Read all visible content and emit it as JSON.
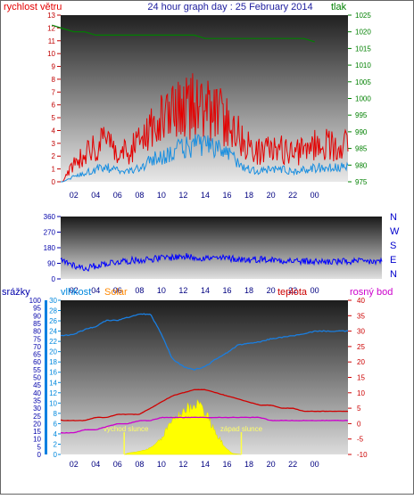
{
  "header": {
    "left_label": "rychlost větru",
    "title": "24 hour graph day : 25 February 2014",
    "right_label": "tlak"
  },
  "colors": {
    "wind": "#e40000",
    "gust_blue": "#1a8fe0",
    "pressure": "#008000",
    "direction": "#0000ff",
    "humidity": "#1a7ee0",
    "temperature": "#d00000",
    "dewpoint": "#cc00cc",
    "solar": "#ffff00",
    "precip_axis": "#0000cc",
    "humidity_axis": "#0088dd",
    "solar_label": "#ff8800",
    "temp_axis": "#cc0000",
    "sun_marker": "#ffff44"
  },
  "chart_data": [
    {
      "type": "line",
      "name": "wind_pressure",
      "x_ticks": [
        "02",
        "04",
        "06",
        "08",
        "10",
        "12",
        "14",
        "16",
        "18",
        "20",
        "22",
        "00"
      ],
      "ylabel_left": "rychlost větru",
      "ylim_left": [
        0,
        13
      ],
      "y_ticks_left": [
        "0",
        "1",
        "2",
        "3",
        "4",
        "5",
        "6",
        "7",
        "8",
        "9",
        "10",
        "11",
        "12",
        "13"
      ],
      "ylabel_right": "tlak",
      "ylim_right": [
        975,
        1025
      ],
      "y_ticks_right": [
        "975",
        "980",
        "985",
        "990",
        "995",
        "1000",
        "1005",
        "1010",
        "1015",
        "1020",
        "1025"
      ],
      "series": [
        {
          "key": "wind_gust",
          "x": [
            0,
            1,
            2,
            3,
            4,
            5,
            6,
            7,
            8,
            9,
            10,
            11,
            12,
            13,
            14,
            15,
            16,
            17,
            18,
            19,
            20,
            21,
            22,
            23,
            24
          ],
          "y": [
            0,
            0,
            1.5,
            2.2,
            2.8,
            3.0,
            2.6,
            2.2,
            3.2,
            4.2,
            4.8,
            5.2,
            5.6,
            6.1,
            5.8,
            5.3,
            4.8,
            3.8,
            2.7,
            2.3,
            2.6,
            2.5,
            2.2,
            2.4,
            2.9
          ]
        },
        {
          "key": "wind_avg",
          "x": [
            0,
            1,
            2,
            3,
            4,
            5,
            6,
            7,
            8,
            9,
            10,
            11,
            12,
            13,
            14,
            15,
            16,
            17,
            18,
            19,
            20,
            21,
            22,
            23,
            24
          ],
          "y": [
            0,
            0,
            0.4,
            0.7,
            1.0,
            1.1,
            0.9,
            0.8,
            1.1,
            1.6,
            2.0,
            2.3,
            2.6,
            2.9,
            2.8,
            2.5,
            2.2,
            1.6,
            1.0,
            0.8,
            1.0,
            1.0,
            0.8,
            0.9,
            1.1
          ]
        },
        {
          "key": "pressure",
          "x": [
            0,
            1,
            2,
            3,
            4,
            5,
            6,
            7,
            8,
            9,
            10,
            11,
            12,
            13,
            14,
            15,
            16,
            17,
            18,
            19,
            20,
            21,
            22,
            23,
            24
          ],
          "y": [
            1022,
            1021,
            1020,
            1020,
            1019,
            1019,
            1019,
            1019,
            1019,
            1019,
            1019,
            1019,
            1019,
            1019,
            1018,
            1018,
            1018,
            1018,
            1018,
            1018,
            1018,
            1018,
            1018,
            1018,
            1017
          ]
        }
      ]
    },
    {
      "type": "line",
      "name": "wind_direction",
      "x_ticks": [
        "02",
        "04",
        "06",
        "08",
        "10",
        "12",
        "14",
        "16",
        "18",
        "20",
        "22",
        "00"
      ],
      "ylim": [
        0,
        360
      ],
      "y_ticks": [
        "0",
        "90",
        "180",
        "270",
        "360"
      ],
      "compass_labels": [
        "N",
        "W",
        "S",
        "E",
        "N"
      ],
      "series": [
        {
          "key": "direction",
          "x": [
            0,
            1,
            2,
            3,
            4,
            5,
            6,
            7,
            8,
            9,
            10,
            11,
            12,
            13,
            14,
            15,
            16,
            17,
            18,
            19,
            20,
            21,
            22,
            23,
            24
          ],
          "y": [
            110,
            105,
            80,
            60,
            75,
            90,
            100,
            105,
            110,
            115,
            120,
            125,
            130,
            125,
            120,
            118,
            120,
            115,
            110,
            115,
            110,
            108,
            105,
            100,
            100
          ]
        }
      ]
    },
    {
      "type": "area",
      "name": "humidity_temp_solar",
      "x_ticks": [
        "02",
        "04",
        "06",
        "08",
        "10",
        "12",
        "14",
        "16",
        "18",
        "20",
        "22",
        "00"
      ],
      "axes": {
        "precip": {
          "label": "srážky",
          "ylim": [
            0,
            100
          ],
          "ticks": [
            "0",
            "5",
            "10",
            "15",
            "20",
            "25",
            "30",
            "35",
            "40",
            "45",
            "50",
            "55",
            "60",
            "65",
            "70",
            "75",
            "80",
            "85",
            "90",
            "95",
            "100"
          ]
        },
        "humidity": {
          "label": "vlhkost",
          "ylim": [
            0,
            30
          ],
          "ticks": [
            "0",
            "2",
            "4",
            "6",
            "8",
            "10",
            "12",
            "14",
            "16",
            "18",
            "20",
            "22",
            "24",
            "26",
            "28",
            "30"
          ]
        },
        "solar": {
          "label": "Solar"
        },
        "temperature": {
          "label": "teplota",
          "ylim": [
            -10,
            40
          ],
          "ticks": [
            "-10",
            "-5",
            "0",
            "5",
            "10",
            "15",
            "20",
            "25",
            "30",
            "35",
            "40"
          ]
        },
        "dewpoint": {
          "label": "rosný bod"
        }
      },
      "series": [
        {
          "key": "humidity",
          "axis": "precip",
          "x": [
            0,
            1,
            2,
            3,
            4,
            5,
            6,
            7,
            8,
            9,
            10,
            11,
            12,
            13,
            14,
            15,
            16,
            17,
            18,
            19,
            20,
            21,
            22,
            23,
            24
          ],
          "y": [
            77,
            77,
            78,
            81,
            83,
            87,
            87,
            89,
            91,
            91,
            78,
            62,
            57,
            55,
            57,
            62,
            66,
            71,
            72,
            73,
            75,
            76,
            77,
            78,
            80
          ]
        },
        {
          "key": "temperature",
          "axis": "temperature",
          "x": [
            0,
            1,
            2,
            3,
            4,
            5,
            6,
            7,
            8,
            9,
            10,
            11,
            12,
            13,
            14,
            15,
            16,
            17,
            18,
            19,
            20,
            21,
            22,
            23,
            24
          ],
          "y": [
            2,
            1,
            1,
            1,
            2,
            2,
            3,
            3,
            3,
            5,
            7,
            9,
            10,
            11,
            11,
            10,
            9,
            8,
            7,
            6,
            6,
            5,
            5,
            4,
            4
          ]
        },
        {
          "key": "dewpoint",
          "axis": "temperature",
          "x": [
            0,
            1,
            2,
            3,
            4,
            5,
            6,
            7,
            8,
            9,
            10,
            11,
            12,
            13,
            14,
            15,
            16,
            17,
            18,
            19,
            20,
            21,
            22,
            23,
            24
          ],
          "y": [
            -3,
            -3,
            -3,
            -2,
            -2,
            -1,
            0,
            0,
            1,
            1,
            2,
            2,
            2,
            2,
            2,
            2,
            2,
            2,
            2,
            2,
            1,
            1,
            1,
            1,
            1
          ]
        },
        {
          "key": "solar",
          "axis": "humidity",
          "x": [
            6.6,
            7,
            8,
            9,
            10,
            10.5,
            11,
            11.5,
            12,
            12.5,
            13,
            13.3,
            13.6,
            14,
            14.5,
            15,
            15.5,
            16,
            16.5,
            17.3
          ],
          "y": [
            0,
            0.3,
            0.6,
            1.2,
            3.0,
            5.0,
            6.8,
            7.6,
            8.4,
            9.2,
            9.8,
            10.0,
            9.6,
            8.2,
            6.0,
            4.0,
            2.5,
            1.0,
            0.2,
            0
          ]
        }
      ],
      "annotations": {
        "sunrise_label": "východ slunce",
        "sunset_label": "západ slunce",
        "sunrise_hour": 6.6,
        "sunset_hour": 17.3
      }
    }
  ]
}
